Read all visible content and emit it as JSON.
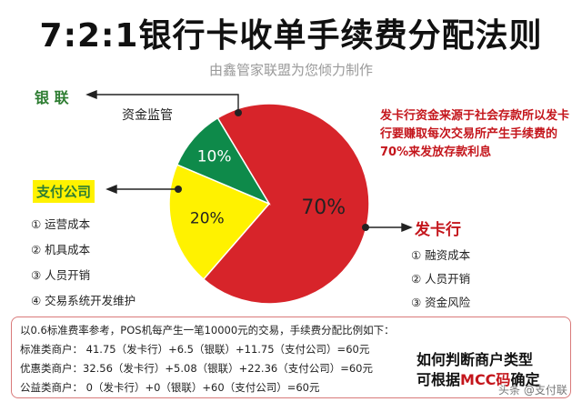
{
  "header": {
    "title": "7:2:1银行卡收单手续费分配法则",
    "subtitle": "由鑫管家联盟为您倾力制作"
  },
  "colors": {
    "issuer": "#d7242a",
    "payment": "#fff200",
    "unionpay": "#0e8a4a"
  },
  "chart_data": {
    "type": "pie",
    "slices": [
      {
        "label": "发卡行",
        "value": 70,
        "display": "70%",
        "color": "#d7242a"
      },
      {
        "label": "支付公司",
        "value": 20,
        "display": "20%",
        "color": "#fff200"
      },
      {
        "label": "银联",
        "value": 10,
        "display": "10%",
        "color": "#0e8a4a"
      }
    ]
  },
  "labels": {
    "unionpay": "银 联",
    "unionpay_role": "资金监管",
    "payment": "支付公司",
    "issuer": "发卡行"
  },
  "payment_costs": [
    "① 运营成本",
    "② 机具成本",
    "③ 人员开销",
    "④ 交易系统开发维护"
  ],
  "issuer_costs": [
    "① 融资成本",
    "② 人员开销",
    "③ 资金风险"
  ],
  "note_text": "发卡行资金来源于社会存款所以发卡行要赚取每次交易所产生手续费的70%来发放存款利息",
  "example": {
    "intro": "以0.6标准费率参考，POS机每产生一笔10000元的交易，手续费分配比例如下：",
    "rows": [
      "标准类商户：  41.75（发卡行）+6.5（银联）+11.75（支付公司）=60元",
      "优惠类商户：32.56（发卡行）+5.08（银联）+22.36（支付公司）=60元",
      "公益类商户：  0（发卡行）+0（银联）+60（支付公司）=60元"
    ]
  },
  "callout": {
    "line1": "如何判断商户类型",
    "line2_prefix": "可根据",
    "line2_mcc": "MCC码",
    "line2_suffix": "确定"
  },
  "watermark": "头条 @支付联"
}
